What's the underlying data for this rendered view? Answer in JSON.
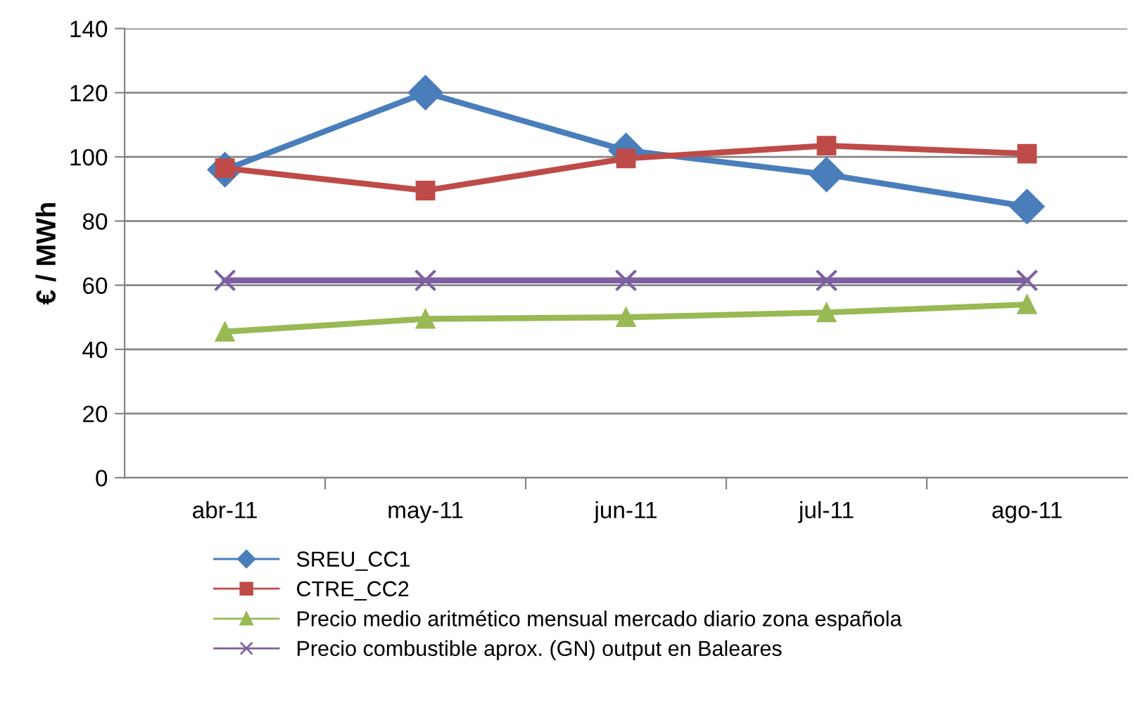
{
  "chart_data": {
    "type": "line",
    "ylabel": "€ / MWh",
    "categories": [
      "abr-11",
      "may-11",
      "jun-11",
      "jul-11",
      "ago-11"
    ],
    "series": [
      {
        "name": "SREU_CC1",
        "color": "#4a7ebb",
        "marker": "diamond",
        "values": [
          96,
          120,
          102,
          94.5,
          84.5
        ]
      },
      {
        "name": "CTRE_CC2",
        "color": "#be4b48",
        "marker": "square",
        "values": [
          96.5,
          89.5,
          99.5,
          103.5,
          101
        ]
      },
      {
        "name": "Precio medio aritmético mensual mercado diario zona española",
        "color": "#98b954",
        "marker": "triangle",
        "values": [
          45.5,
          49.5,
          50,
          51.5,
          54
        ]
      },
      {
        "name": "Precio combustible aprox. (GN) output en Baleares",
        "color": "#7d60a0",
        "marker": "cross",
        "values": [
          61.5,
          61.5,
          61.5,
          61.5,
          61.5
        ]
      }
    ],
    "ylim": [
      0,
      140
    ],
    "yticks": [
      0,
      20,
      40,
      60,
      80,
      100,
      120,
      140
    ],
    "grid": "y",
    "legend": "bottom"
  }
}
